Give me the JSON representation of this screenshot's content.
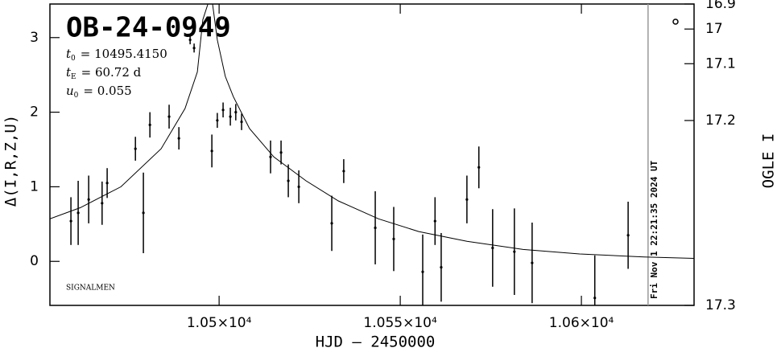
{
  "chart_data": {
    "type": "scatter",
    "title": "OB-24-0949",
    "params": [
      {
        "symbol": "t",
        "sub": "0",
        "text": "= 10495.4150"
      },
      {
        "symbol": "t",
        "sub": "E",
        "text": "= 60.72 d"
      },
      {
        "symbol": "u",
        "sub": "0",
        "text": "= 0.055"
      }
    ],
    "footnote": "SIGNALMEN",
    "timestamp": "Fri Nov  1 22:21:35 2024 UT",
    "x_label": "HJD – 2450000",
    "y_label": "Δ(I,R,Z,U)",
    "y2_label": "OGLE I",
    "color": "#000000",
    "points": {
      "x": [
        10459.1,
        10461.1,
        10464.0,
        10467.7,
        10469.1,
        10476.9,
        10479.1,
        10480.9,
        10486.2,
        10488.9,
        10492.0,
        10493.1,
        10498.0,
        10499.5,
        10501.1,
        10503.1,
        10504.6,
        10506.2,
        10514.2,
        10517.1,
        10519.1,
        10522.0,
        10531.1,
        10534.4,
        10543.1,
        10548.2,
        10556.2,
        10559.6,
        10561.3,
        10568.4,
        10571.7,
        10575.5,
        10581.5,
        10586.4,
        10603.7,
        10612.9
      ],
      "values": [
        0.54,
        0.65,
        0.83,
        0.78,
        1.05,
        1.51,
        0.65,
        1.83,
        1.94,
        1.65,
        2.97,
        2.86,
        1.48,
        1.89,
        2.03,
        1.94,
        2.0,
        1.87,
        1.4,
        1.46,
        1.08,
        1.0,
        0.51,
        1.21,
        0.45,
        0.3,
        -0.14,
        0.54,
        -0.08,
        0.83,
        1.26,
        0.18,
        0.13,
        -0.02,
        -0.49,
        0.35
      ],
      "errors": [
        0.32,
        0.43,
        0.32,
        0.29,
        0.2,
        0.16,
        0.54,
        0.17,
        0.16,
        0.15,
        0.06,
        0.06,
        0.22,
        0.1,
        0.1,
        0.12,
        0.11,
        0.11,
        0.22,
        0.16,
        0.22,
        0.22,
        0.37,
        0.16,
        0.49,
        0.43,
        0.5,
        0.32,
        0.46,
        0.32,
        0.28,
        0.52,
        0.58,
        0.54,
        0.57,
        0.45
      ]
    },
    "model": {
      "x": [
        10453.3,
        10461.7,
        10472.9,
        10484.0,
        10490.6,
        10494.0,
        10495.5,
        10496.9,
        10498.2,
        10499.5,
        10501.7,
        10503.9,
        10508.4,
        10515.1,
        10524.0,
        10532.9,
        10544.0,
        10555.1,
        10568.4,
        10583.9,
        10599.5,
        10617.3,
        10631.1
      ],
      "values": [
        0.57,
        0.72,
        1.0,
        1.51,
        2.05,
        2.54,
        3.24,
        3.45,
        3.45,
        2.97,
        2.48,
        2.21,
        1.78,
        1.4,
        1.08,
        0.81,
        0.57,
        0.4,
        0.27,
        0.16,
        0.1,
        0.06,
        0.04
      ]
    },
    "xlim": [
      10453.3,
      10631.1
    ],
    "ylim": [
      -0.59,
      3.45
    ],
    "xticks": [
      {
        "value": 10500,
        "label": "1.05×10⁴"
      },
      {
        "value": 10550,
        "label": "1.055×10⁴"
      },
      {
        "value": 10600,
        "label": "1.06×10⁴"
      }
    ],
    "yticks": [
      0,
      1,
      2,
      3
    ],
    "y2lim": [
      17.3,
      16.9
    ],
    "y2ticks": [
      16.9,
      17,
      17.1,
      17.2,
      17.3
    ],
    "y2_scale": "magnitude",
    "timestamp_x": 10618.4
  }
}
